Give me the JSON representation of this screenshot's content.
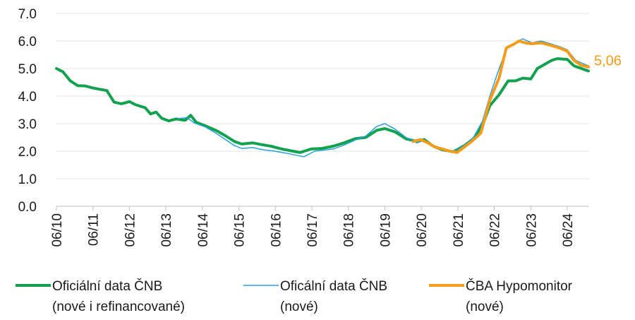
{
  "chart_data": {
    "type": "line",
    "xlim": [
      2010.42,
      2024.42
    ],
    "ylim": [
      0,
      7
    ],
    "y_ticks": [
      "7.0",
      "6.0",
      "5.0",
      "4.0",
      "3.0",
      "2.0",
      "1.0",
      "0.0"
    ],
    "x_tick_labels": [
      "06/10",
      "06/11",
      "06/12",
      "06/13",
      "06/14",
      "06/15",
      "06/16",
      "06/17",
      "06/18",
      "06/19",
      "06/20",
      "06/21",
      "06/22",
      "06/23",
      "06/24"
    ],
    "grid": "horizontal",
    "legend_position": "bottom",
    "end_label": "5,06",
    "series": [
      {
        "name": "Oficiální data ČNB",
        "name_line2": "(nové i refinancované)",
        "color": "#12a14f",
        "points": [
          [
            2010.42,
            5.0
          ],
          [
            2010.6,
            4.88
          ],
          [
            2010.8,
            4.55
          ],
          [
            2011.0,
            4.38
          ],
          [
            2011.2,
            4.37
          ],
          [
            2011.4,
            4.3
          ],
          [
            2011.6,
            4.25
          ],
          [
            2011.8,
            4.2
          ],
          [
            2012.0,
            3.78
          ],
          [
            2012.2,
            3.72
          ],
          [
            2012.42,
            3.8
          ],
          [
            2012.6,
            3.68
          ],
          [
            2012.85,
            3.58
          ],
          [
            2013.0,
            3.35
          ],
          [
            2013.15,
            3.42
          ],
          [
            2013.3,
            3.2
          ],
          [
            2013.5,
            3.1
          ],
          [
            2013.7,
            3.17
          ],
          [
            2013.95,
            3.12
          ],
          [
            2014.1,
            3.3
          ],
          [
            2014.25,
            3.05
          ],
          [
            2014.5,
            2.92
          ],
          [
            2014.8,
            2.75
          ],
          [
            2015.0,
            2.6
          ],
          [
            2015.3,
            2.35
          ],
          [
            2015.5,
            2.26
          ],
          [
            2015.8,
            2.3
          ],
          [
            2016.0,
            2.25
          ],
          [
            2016.3,
            2.18
          ],
          [
            2016.6,
            2.08
          ],
          [
            2016.9,
            2.0
          ],
          [
            2017.1,
            1.95
          ],
          [
            2017.4,
            2.08
          ],
          [
            2017.7,
            2.1
          ],
          [
            2018.0,
            2.18
          ],
          [
            2018.3,
            2.3
          ],
          [
            2018.6,
            2.45
          ],
          [
            2018.9,
            2.5
          ],
          [
            2019.2,
            2.76
          ],
          [
            2019.42,
            2.82
          ],
          [
            2019.7,
            2.7
          ],
          [
            2020.0,
            2.45
          ],
          [
            2020.3,
            2.35
          ],
          [
            2020.5,
            2.42
          ],
          [
            2020.75,
            2.18
          ],
          [
            2021.0,
            2.05
          ],
          [
            2021.3,
            1.98
          ],
          [
            2021.6,
            2.2
          ],
          [
            2021.85,
            2.45
          ],
          [
            2022.1,
            2.95
          ],
          [
            2022.3,
            3.65
          ],
          [
            2022.55,
            4.05
          ],
          [
            2022.8,
            4.55
          ],
          [
            2023.0,
            4.55
          ],
          [
            2023.2,
            4.65
          ],
          [
            2023.42,
            4.62
          ],
          [
            2023.6,
            5.0
          ],
          [
            2023.8,
            5.15
          ],
          [
            2024.0,
            5.3
          ],
          [
            2024.15,
            5.36
          ],
          [
            2024.42,
            5.33
          ],
          [
            2024.6,
            5.1
          ],
          [
            2024.85,
            4.98
          ],
          [
            2025.0,
            4.91
          ]
        ]
      },
      {
        "name": "Oficální data ČNB",
        "name_line2": "(nové)",
        "color": "#2a9fd8",
        "points": [
          [
            2013.75,
            3.18
          ],
          [
            2014.0,
            3.22
          ],
          [
            2014.2,
            3.02
          ],
          [
            2014.5,
            2.88
          ],
          [
            2014.8,
            2.65
          ],
          [
            2015.0,
            2.47
          ],
          [
            2015.3,
            2.2
          ],
          [
            2015.5,
            2.1
          ],
          [
            2015.8,
            2.13
          ],
          [
            2016.1,
            2.05
          ],
          [
            2016.4,
            2.0
          ],
          [
            2016.7,
            1.93
          ],
          [
            2017.0,
            1.85
          ],
          [
            2017.2,
            1.8
          ],
          [
            2017.5,
            2.0
          ],
          [
            2017.8,
            2.05
          ],
          [
            2018.0,
            2.08
          ],
          [
            2018.3,
            2.22
          ],
          [
            2018.6,
            2.4
          ],
          [
            2018.9,
            2.55
          ],
          [
            2019.2,
            2.9
          ],
          [
            2019.42,
            3.0
          ],
          [
            2019.7,
            2.8
          ],
          [
            2020.0,
            2.5
          ],
          [
            2020.3,
            2.3
          ],
          [
            2020.5,
            2.4
          ],
          [
            2020.75,
            2.2
          ],
          [
            2021.0,
            2.1
          ],
          [
            2021.3,
            2.0
          ],
          [
            2021.6,
            2.2
          ],
          [
            2021.85,
            2.5
          ],
          [
            2022.1,
            3.1
          ],
          [
            2022.3,
            4.0
          ],
          [
            2022.5,
            4.8
          ],
          [
            2022.75,
            5.7
          ],
          [
            2022.95,
            5.9
          ],
          [
            2023.2,
            6.08
          ],
          [
            2023.45,
            5.93
          ],
          [
            2023.7,
            6.0
          ],
          [
            2023.95,
            5.9
          ],
          [
            2024.2,
            5.8
          ],
          [
            2024.42,
            5.68
          ],
          [
            2024.65,
            5.3
          ],
          [
            2024.85,
            5.18
          ],
          [
            2025.0,
            5.1
          ]
        ]
      },
      {
        "name": "ČBA Hypomonitor",
        "name_line2": "(nové)",
        "color": "#f59c1a",
        "points": [
          [
            2020.2,
            2.35
          ],
          [
            2020.4,
            2.42
          ],
          [
            2020.6,
            2.3
          ],
          [
            2020.8,
            2.15
          ],
          [
            2021.0,
            2.08
          ],
          [
            2021.2,
            2.0
          ],
          [
            2021.4,
            1.95
          ],
          [
            2021.6,
            2.15
          ],
          [
            2021.8,
            2.35
          ],
          [
            2022.05,
            2.65
          ],
          [
            2022.3,
            3.85
          ],
          [
            2022.55,
            4.65
          ],
          [
            2022.75,
            5.75
          ],
          [
            2022.95,
            5.88
          ],
          [
            2023.1,
            6.0
          ],
          [
            2023.3,
            5.92
          ],
          [
            2023.45,
            5.9
          ],
          [
            2023.7,
            5.93
          ],
          [
            2023.95,
            5.85
          ],
          [
            2024.2,
            5.75
          ],
          [
            2024.42,
            5.63
          ],
          [
            2024.6,
            5.3
          ],
          [
            2024.8,
            5.12
          ],
          [
            2025.0,
            5.06
          ]
        ]
      }
    ]
  }
}
